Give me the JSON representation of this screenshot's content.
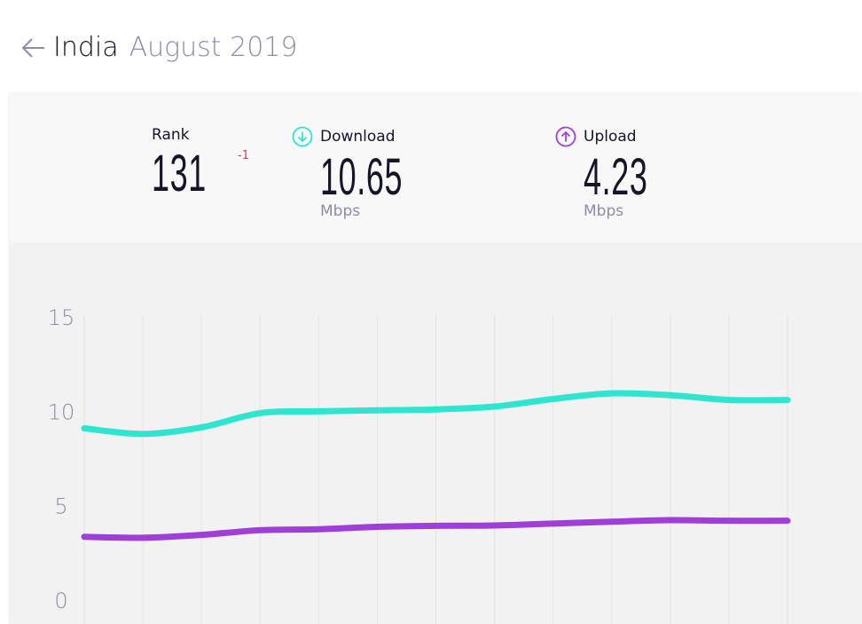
{
  "header": {
    "country": "India",
    "period": "August 2019"
  },
  "stats": {
    "rank": {
      "label": "Rank",
      "value": "131",
      "change": "-1"
    },
    "download": {
      "label": "Download",
      "value": "10.65",
      "unit": "Mbps",
      "icon": "download-arrow-icon",
      "color": "#2ee6d0"
    },
    "upload": {
      "label": "Upload",
      "value": "4.23",
      "unit": "Mbps",
      "icon": "upload-arrow-icon",
      "color": "#a03fd8"
    }
  },
  "chart_data": {
    "type": "line",
    "x": [
      1,
      2,
      3,
      4,
      5,
      6,
      7,
      8,
      9,
      10,
      11,
      12,
      13
    ],
    "ylim": [
      0,
      15
    ],
    "yticks": [
      0,
      5,
      10,
      15
    ],
    "grid": true,
    "series": [
      {
        "color": "#2ee6d0",
        "values": [
          9.1,
          8.8,
          9.15,
          9.9,
          10.0,
          10.05,
          10.1,
          10.25,
          10.65,
          10.95,
          10.85,
          10.6,
          10.6
        ]
      },
      {
        "color": "#a03fd8",
        "values": [
          3.35,
          3.3,
          3.45,
          3.7,
          3.75,
          3.88,
          3.93,
          3.95,
          4.05,
          4.15,
          4.23,
          4.2,
          4.2
        ]
      }
    ]
  }
}
